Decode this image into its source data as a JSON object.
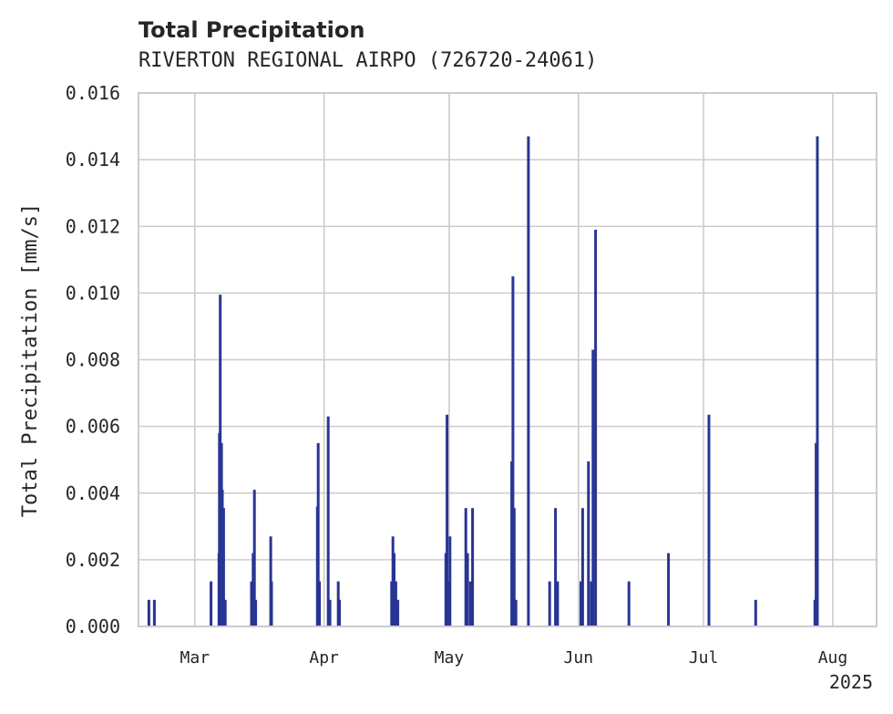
{
  "chart_data": {
    "type": "bar",
    "title": "Total Precipitation",
    "subtitle": "RIVERTON REGIONAL AIRPO (726720-24061)",
    "xlabel": "",
    "ylabel": "Total Precipitation [mm/s]",
    "x_year_label": "2025",
    "ylim": [
      0,
      0.016
    ],
    "xlim": [
      -13.5,
      163.5
    ],
    "x_units": "days since 2025-03-01",
    "yticks": [
      0.0,
      0.002,
      0.004,
      0.006,
      0.008,
      0.01,
      0.012,
      0.014,
      0.016
    ],
    "ytick_labels": [
      "0.000",
      "0.002",
      "0.004",
      "0.006",
      "0.008",
      "0.010",
      "0.012",
      "0.014",
      "0.016"
    ],
    "xticks": [
      0,
      31,
      61,
      92,
      122,
      153
    ],
    "xtick_labels": [
      "Mar",
      "Apr",
      "May",
      "Jun",
      "Jul",
      "Aug"
    ],
    "grid": true,
    "color": "#283593",
    "x": [
      -11.0,
      -9.7,
      3.9,
      5.8,
      5.9,
      6.1,
      6.4,
      6.6,
      6.9,
      7.3,
      13.6,
      14.0,
      14.3,
      14.6,
      18.2,
      18.4,
      29.4,
      29.6,
      29.9,
      32.0,
      32.4,
      34.4,
      34.7,
      47.2,
      47.5,
      47.8,
      48.2,
      48.7,
      60.2,
      60.5,
      60.9,
      61.2,
      65.0,
      65.4,
      66.1,
      66.6,
      76.0,
      76.3,
      76.6,
      77.0,
      80.0,
      85.1,
      86.5,
      87.0,
      92.6,
      93.0,
      94.4,
      95.1,
      95.5,
      96.1,
      104.1,
      113.6,
      123.3,
      134.5,
      148.7,
      149.0,
      149.3
    ],
    "values": [
      0.0008,
      0.0008,
      0.00135,
      0.0022,
      0.0058,
      0.00995,
      0.0055,
      0.0041,
      0.00355,
      0.0008,
      0.00135,
      0.0022,
      0.0041,
      0.0008,
      0.0027,
      0.00135,
      0.0036,
      0.0055,
      0.00135,
      0.0063,
      0.0008,
      0.00135,
      0.0008,
      0.00135,
      0.0027,
      0.0022,
      0.00135,
      0.0008,
      0.0022,
      0.00635,
      0.00135,
      0.0027,
      0.00355,
      0.0022,
      0.00135,
      0.00355,
      0.00495,
      0.0105,
      0.00355,
      0.0008,
      0.0147,
      0.00135,
      0.00355,
      0.00135,
      0.00135,
      0.00355,
      0.00495,
      0.00135,
      0.0083,
      0.0119,
      0.00135,
      0.0022,
      0.00635,
      0.0008,
      0.0008,
      0.0055,
      0.0147
    ]
  }
}
